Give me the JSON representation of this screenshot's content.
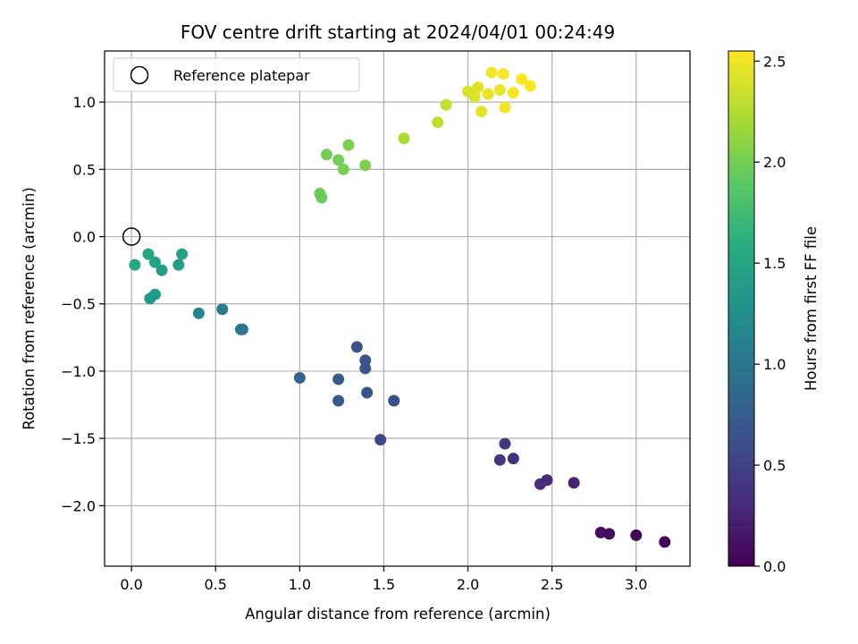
{
  "chart_data": {
    "type": "scatter",
    "title": "FOV centre drift starting at 2024/04/01 00:24:49",
    "xlabel": "Angular distance from reference (arcmin)",
    "ylabel": "Rotation from reference (arcmin)",
    "xlim": [
      -0.16,
      3.32
    ],
    "ylim": [
      -2.45,
      1.38
    ],
    "xticks": [
      0.0,
      0.5,
      1.0,
      1.5,
      2.0,
      2.5,
      3.0
    ],
    "xtick_labels": [
      "0.0",
      "0.5",
      "1.0",
      "1.5",
      "2.0",
      "2.5",
      "3.0"
    ],
    "yticks": [
      -2.0,
      -1.5,
      -1.0,
      -0.5,
      0.0,
      0.5,
      1.0
    ],
    "ytick_labels": [
      "−2.0",
      "−1.5",
      "−1.0",
      "−0.5",
      "0.0",
      "0.5",
      "1.0"
    ],
    "grid": true,
    "legend": {
      "position": "top-left",
      "entries": [
        "Reference platepar"
      ]
    },
    "reference_point": {
      "x": 0.0,
      "y": 0.0,
      "label": "Reference platepar",
      "marker": "hollow-circle"
    },
    "colorbar": {
      "label": "Hours from first FF file",
      "colormap": "viridis",
      "range": [
        0.0,
        2.55
      ],
      "ticks": [
        0.0,
        0.5,
        1.0,
        1.5,
        2.0,
        2.5
      ],
      "tick_labels": [
        "0.0",
        "0.5",
        "1.0",
        "1.5",
        "2.0",
        "2.5"
      ]
    },
    "points": [
      {
        "x": 3.17,
        "y": -2.27,
        "c": 0.02
      },
      {
        "x": 3.0,
        "y": -2.22,
        "c": 0.05
      },
      {
        "x": 2.84,
        "y": -2.21,
        "c": 0.08
      },
      {
        "x": 2.79,
        "y": -2.2,
        "c": 0.1
      },
      {
        "x": 2.63,
        "y": -1.83,
        "c": 0.25
      },
      {
        "x": 2.47,
        "y": -1.81,
        "c": 0.3
      },
      {
        "x": 2.43,
        "y": -1.84,
        "c": 0.33
      },
      {
        "x": 2.27,
        "y": -1.65,
        "c": 0.36
      },
      {
        "x": 2.19,
        "y": -1.66,
        "c": 0.4
      },
      {
        "x": 2.22,
        "y": -1.54,
        "c": 0.42
      },
      {
        "x": 1.48,
        "y": -1.51,
        "c": 0.55
      },
      {
        "x": 1.56,
        "y": -1.22,
        "c": 0.6
      },
      {
        "x": 1.4,
        "y": -1.16,
        "c": 0.65
      },
      {
        "x": 1.23,
        "y": -1.22,
        "c": 0.7
      },
      {
        "x": 1.23,
        "y": -1.06,
        "c": 0.72
      },
      {
        "x": 1.39,
        "y": -0.98,
        "c": 0.68
      },
      {
        "x": 1.39,
        "y": -0.92,
        "c": 0.66
      },
      {
        "x": 1.34,
        "y": -0.82,
        "c": 0.64
      },
      {
        "x": 1.0,
        "y": -1.05,
        "c": 0.85
      },
      {
        "x": 0.66,
        "y": -0.69,
        "c": 1.0
      },
      {
        "x": 0.65,
        "y": -0.69,
        "c": 1.02
      },
      {
        "x": 0.54,
        "y": -0.54,
        "c": 1.08
      },
      {
        "x": 0.4,
        "y": -0.57,
        "c": 1.15
      },
      {
        "x": 0.3,
        "y": -0.13,
        "c": 1.45
      },
      {
        "x": 0.28,
        "y": -0.21,
        "c": 1.42
      },
      {
        "x": 0.18,
        "y": -0.25,
        "c": 1.4
      },
      {
        "x": 0.14,
        "y": -0.19,
        "c": 1.47
      },
      {
        "x": 0.1,
        "y": -0.13,
        "c": 1.5
      },
      {
        "x": 0.02,
        "y": -0.21,
        "c": 1.52
      },
      {
        "x": 0.14,
        "y": -0.43,
        "c": 1.38
      },
      {
        "x": 0.11,
        "y": -0.46,
        "c": 1.36
      },
      {
        "x": 1.13,
        "y": 0.29,
        "c": 1.95
      },
      {
        "x": 1.12,
        "y": 0.32,
        "c": 1.97
      },
      {
        "x": 1.16,
        "y": 0.61,
        "c": 2.0
      },
      {
        "x": 1.23,
        "y": 0.57,
        "c": 2.0
      },
      {
        "x": 1.26,
        "y": 0.5,
        "c": 2.02
      },
      {
        "x": 1.29,
        "y": 0.68,
        "c": 2.03
      },
      {
        "x": 1.39,
        "y": 0.53,
        "c": 2.04
      },
      {
        "x": 1.62,
        "y": 0.73,
        "c": 2.22
      },
      {
        "x": 1.82,
        "y": 0.85,
        "c": 2.3
      },
      {
        "x": 1.87,
        "y": 0.98,
        "c": 2.32
      },
      {
        "x": 2.0,
        "y": 1.08,
        "c": 2.4
      },
      {
        "x": 2.04,
        "y": 1.04,
        "c": 2.42
      },
      {
        "x": 2.06,
        "y": 1.11,
        "c": 2.44
      },
      {
        "x": 2.08,
        "y": 0.93,
        "c": 2.45
      },
      {
        "x": 2.12,
        "y": 1.06,
        "c": 2.47
      },
      {
        "x": 2.14,
        "y": 1.22,
        "c": 2.5
      },
      {
        "x": 2.19,
        "y": 1.09,
        "c": 2.48
      },
      {
        "x": 2.21,
        "y": 1.21,
        "c": 2.52
      },
      {
        "x": 2.22,
        "y": 0.96,
        "c": 2.5
      },
      {
        "x": 2.27,
        "y": 1.07,
        "c": 2.53
      },
      {
        "x": 2.32,
        "y": 1.17,
        "c": 2.54
      },
      {
        "x": 2.37,
        "y": 1.12,
        "c": 2.55
      }
    ]
  }
}
